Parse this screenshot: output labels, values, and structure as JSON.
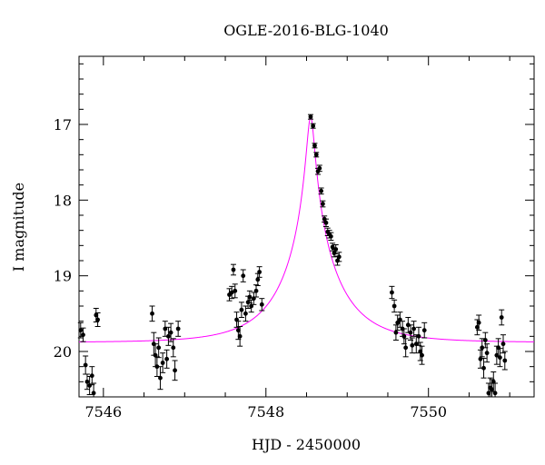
{
  "chart_data": {
    "type": "scatter",
    "title": "OGLE-2016-BLG-1040",
    "xlabel": "HJD - 2450000",
    "ylabel": "I magnitude",
    "xlim": [
      7545.7,
      7551.3
    ],
    "ylim": [
      20.6,
      16.1
    ],
    "y_inverted": true,
    "x_ticks": [
      7546,
      7548,
      7550
    ],
    "y_ticks": [
      17,
      18,
      19,
      20
    ],
    "grid": false,
    "model_color": "#ff00ff",
    "model": {
      "t0": 7548.55,
      "baseline_mag": 19.88,
      "peak_mag": 16.9
    },
    "series": [
      {
        "points": [
          [
            7545.72,
            19.72,
            0.1
          ],
          [
            7545.75,
            19.78,
            0.09
          ],
          [
            7545.78,
            20.18,
            0.12
          ],
          [
            7545.8,
            20.4,
            0.1
          ],
          [
            7545.83,
            20.45,
            0.12
          ],
          [
            7545.86,
            20.32,
            0.12
          ],
          [
            7545.88,
            20.55,
            0.13
          ],
          [
            7545.91,
            19.52,
            0.09
          ],
          [
            7545.93,
            19.58,
            0.09
          ],
          [
            7546.6,
            19.5,
            0.1
          ],
          [
            7546.62,
            19.9,
            0.15
          ],
          [
            7546.64,
            20.05,
            0.15
          ],
          [
            7546.66,
            20.2,
            0.13
          ],
          [
            7546.68,
            19.95,
            0.13
          ],
          [
            7546.7,
            20.35,
            0.15
          ],
          [
            7546.73,
            20.15,
            0.13
          ],
          [
            7546.76,
            19.7,
            0.1
          ],
          [
            7546.78,
            20.1,
            0.12
          ],
          [
            7546.8,
            19.8,
            0.12
          ],
          [
            7546.83,
            19.75,
            0.12
          ],
          [
            7546.86,
            19.95,
            0.12
          ],
          [
            7546.88,
            20.25,
            0.13
          ],
          [
            7546.92,
            19.7,
            0.1
          ],
          [
            7547.55,
            19.25,
            0.08
          ],
          [
            7547.58,
            19.22,
            0.08
          ],
          [
            7547.6,
            18.92,
            0.07
          ],
          [
            7547.62,
            19.2,
            0.09
          ],
          [
            7547.64,
            19.58,
            0.1
          ],
          [
            7547.66,
            19.72,
            0.12
          ],
          [
            7547.68,
            19.8,
            0.13
          ],
          [
            7547.7,
            19.45,
            0.1
          ],
          [
            7547.72,
            19.0,
            0.08
          ],
          [
            7547.75,
            19.5,
            0.1
          ],
          [
            7547.78,
            19.35,
            0.08
          ],
          [
            7547.8,
            19.28,
            0.08
          ],
          [
            7547.82,
            19.4,
            0.08
          ],
          [
            7547.85,
            19.3,
            0.08
          ],
          [
            7547.88,
            19.2,
            0.08
          ],
          [
            7547.9,
            19.05,
            0.08
          ],
          [
            7547.92,
            18.95,
            0.07
          ],
          [
            7547.95,
            19.38,
            0.08
          ],
          [
            7548.55,
            16.9,
            0.03
          ],
          [
            7548.58,
            17.02,
            0.03
          ],
          [
            7548.6,
            17.28,
            0.03
          ],
          [
            7548.62,
            17.4,
            0.03
          ],
          [
            7548.64,
            17.62,
            0.04
          ],
          [
            7548.66,
            17.58,
            0.04
          ],
          [
            7548.68,
            17.88,
            0.04
          ],
          [
            7548.7,
            18.05,
            0.04
          ],
          [
            7548.72,
            18.25,
            0.04
          ],
          [
            7548.74,
            18.3,
            0.05
          ],
          [
            7548.76,
            18.42,
            0.05
          ],
          [
            7548.78,
            18.45,
            0.05
          ],
          [
            7548.8,
            18.48,
            0.05
          ],
          [
            7548.82,
            18.62,
            0.05
          ],
          [
            7548.84,
            18.7,
            0.05
          ],
          [
            7548.86,
            18.65,
            0.06
          ],
          [
            7548.88,
            18.8,
            0.06
          ],
          [
            7548.9,
            18.75,
            0.06
          ],
          [
            7549.55,
            19.22,
            0.08
          ],
          [
            7549.58,
            19.4,
            0.08
          ],
          [
            7549.6,
            19.75,
            0.1
          ],
          [
            7549.62,
            19.62,
            0.1
          ],
          [
            7549.65,
            19.58,
            0.1
          ],
          [
            7549.68,
            19.7,
            0.1
          ],
          [
            7549.7,
            19.8,
            0.1
          ],
          [
            7549.72,
            19.95,
            0.12
          ],
          [
            7549.75,
            19.65,
            0.1
          ],
          [
            7549.78,
            19.75,
            0.1
          ],
          [
            7549.8,
            19.92,
            0.1
          ],
          [
            7549.82,
            19.7,
            0.1
          ],
          [
            7549.85,
            19.9,
            0.12
          ],
          [
            7549.88,
            19.8,
            0.12
          ],
          [
            7549.9,
            20.0,
            0.12
          ],
          [
            7549.92,
            20.05,
            0.12
          ],
          [
            7549.95,
            19.72,
            0.1
          ],
          [
            7550.6,
            19.68,
            0.1
          ],
          [
            7550.62,
            19.62,
            0.1
          ],
          [
            7550.64,
            20.1,
            0.12
          ],
          [
            7550.66,
            19.95,
            0.12
          ],
          [
            7550.68,
            20.22,
            0.13
          ],
          [
            7550.7,
            19.85,
            0.1
          ],
          [
            7550.72,
            20.02,
            0.12
          ],
          [
            7550.74,
            20.55,
            0.13
          ],
          [
            7550.76,
            20.48,
            0.13
          ],
          [
            7550.78,
            20.5,
            0.13
          ],
          [
            7550.8,
            20.4,
            0.13
          ],
          [
            7550.82,
            20.55,
            0.13
          ],
          [
            7550.84,
            20.05,
            0.12
          ],
          [
            7550.86,
            19.95,
            0.12
          ],
          [
            7550.88,
            20.08,
            0.12
          ],
          [
            7550.9,
            19.55,
            0.1
          ],
          [
            7550.92,
            19.9,
            0.12
          ],
          [
            7550.94,
            20.12,
            0.12
          ]
        ]
      }
    ]
  }
}
